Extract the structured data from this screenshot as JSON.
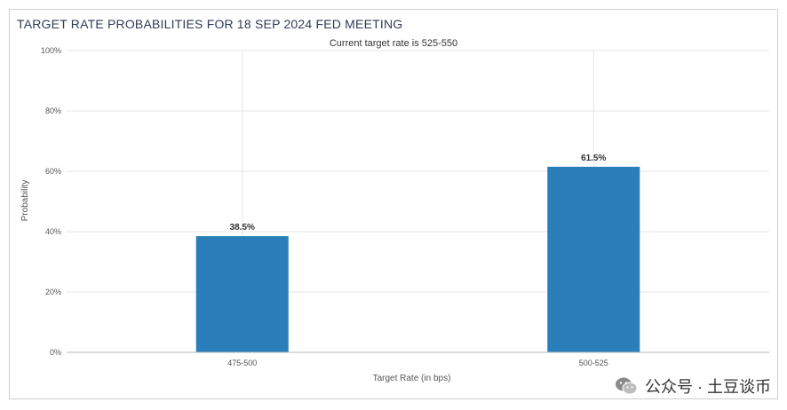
{
  "chart_data": {
    "type": "bar",
    "title": "TARGET RATE PROBABILITIES FOR 18 SEP 2024 FED MEETING",
    "subtitle": "Current target rate is 525-550",
    "categories": [
      "475-500",
      "500-525"
    ],
    "values": [
      38.5,
      61.5
    ],
    "data_labels": [
      "38.5%",
      "61.5%"
    ],
    "xlabel": "Target Rate (in bps)",
    "ylabel": "Probability",
    "ylim": [
      0,
      100
    ],
    "yticks": [
      0,
      20,
      40,
      60,
      80,
      100
    ],
    "ytick_labels": [
      "0%",
      "20%",
      "40%",
      "60%",
      "80%",
      "100%"
    ],
    "grid": true,
    "bar_color": "#2a7fba"
  },
  "watermark": {
    "icon": "wechat-icon",
    "text": "公众号 · 土豆谈币"
  }
}
